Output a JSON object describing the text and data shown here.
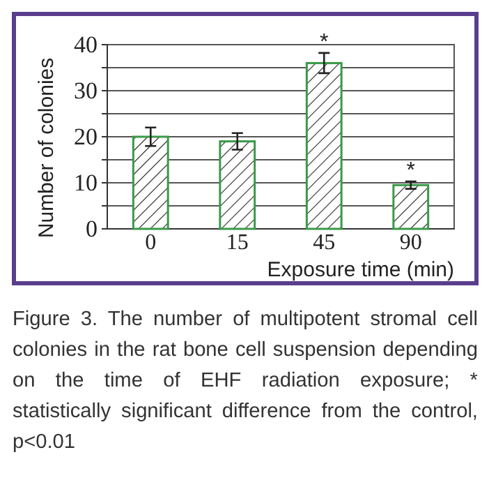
{
  "chart_data": {
    "type": "bar",
    "categories": [
      "0",
      "15",
      "45",
      "90"
    ],
    "values": [
      20,
      19,
      36,
      9.5
    ],
    "errors": [
      2,
      1.8,
      2.2,
      0.8
    ],
    "color": "#3a9a48",
    "xlabel": "Exposure time (min)",
    "ylabel": "Number of colonies",
    "ylim": [
      0,
      40
    ],
    "yticks": [
      0,
      {
        "value": 5,
        "label": null
      },
      10,
      {
        "value": 15,
        "label": null
      },
      20,
      {
        "value": 25,
        "label": null
      },
      30,
      {
        "value": 35,
        "label": null
      },
      40
    ],
    "grid": "y",
    "annotations": [
      {
        "text": "*",
        "x": "45",
        "y": 38.2
      },
      {
        "text": "*",
        "x": "90",
        "y": 10.3
      },
      "Figure 3. The number of multipotent stromal cell colonies in the rat bone cell suspension depending on the time of EHF radiation exposure; * statistically significant difference from the control, p<0.01"
    ]
  }
}
